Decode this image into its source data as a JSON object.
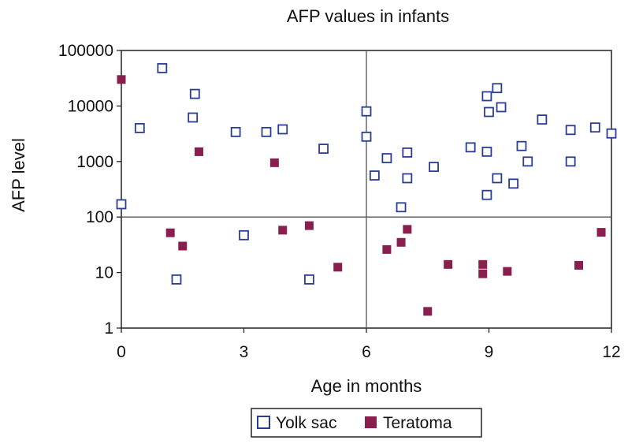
{
  "chart_data": {
    "type": "scatter",
    "title": "AFP values in infants",
    "xlabel": "Age in months",
    "ylabel": "AFP level",
    "xlim": [
      0,
      12
    ],
    "ylim": [
      1,
      100000
    ],
    "y_scale": "log",
    "x_ticks": [
      "0",
      "3",
      "6",
      "9",
      "12"
    ],
    "y_ticks": [
      "1",
      "10",
      "100",
      "1000",
      "10000",
      "100000"
    ],
    "reference_lines": {
      "x": 6,
      "y": 100
    },
    "legend_position": "bottom-center",
    "series": [
      {
        "name": "Yolk sac",
        "marker": "open-square",
        "color": "#2a3d96",
        "points": [
          [
            0.0,
            170
          ],
          [
            0.45,
            4000
          ],
          [
            1.0,
            48000
          ],
          [
            1.35,
            7.5
          ],
          [
            1.75,
            6200
          ],
          [
            1.8,
            16500
          ],
          [
            2.8,
            3400
          ],
          [
            3.0,
            47
          ],
          [
            3.55,
            3400
          ],
          [
            3.95,
            3800
          ],
          [
            4.6,
            7.5
          ],
          [
            4.95,
            1700
          ],
          [
            6.0,
            8000
          ],
          [
            6.0,
            2800
          ],
          [
            6.2,
            560
          ],
          [
            6.5,
            1150
          ],
          [
            6.85,
            150
          ],
          [
            7.0,
            1450
          ],
          [
            7.0,
            500
          ],
          [
            7.65,
            800
          ],
          [
            8.55,
            1800
          ],
          [
            8.95,
            1500
          ],
          [
            8.95,
            250
          ],
          [
            8.95,
            15000
          ],
          [
            9.0,
            7800
          ],
          [
            9.2,
            21000
          ],
          [
            9.2,
            500
          ],
          [
            9.3,
            9500
          ],
          [
            9.6,
            400
          ],
          [
            9.8,
            1900
          ],
          [
            9.95,
            1000
          ],
          [
            10.3,
            5700
          ],
          [
            11.0,
            3700
          ],
          [
            11.0,
            1000
          ],
          [
            11.6,
            4100
          ],
          [
            12.0,
            3200
          ]
        ]
      },
      {
        "name": "Teratoma",
        "marker": "filled-square",
        "color": "#8a1f4f",
        "points": [
          [
            0.0,
            30000
          ],
          [
            1.2,
            52
          ],
          [
            1.5,
            30
          ],
          [
            1.9,
            1500
          ],
          [
            3.75,
            950
          ],
          [
            3.95,
            58
          ],
          [
            4.6,
            70
          ],
          [
            5.3,
            12.5
          ],
          [
            6.5,
            26
          ],
          [
            6.85,
            35
          ],
          [
            7.0,
            60
          ],
          [
            7.5,
            2
          ],
          [
            8.0,
            14
          ],
          [
            8.85,
            14
          ],
          [
            8.85,
            9.5
          ],
          [
            9.45,
            10.5
          ],
          [
            11.2,
            13.5
          ],
          [
            11.75,
            53
          ]
        ]
      }
    ]
  }
}
